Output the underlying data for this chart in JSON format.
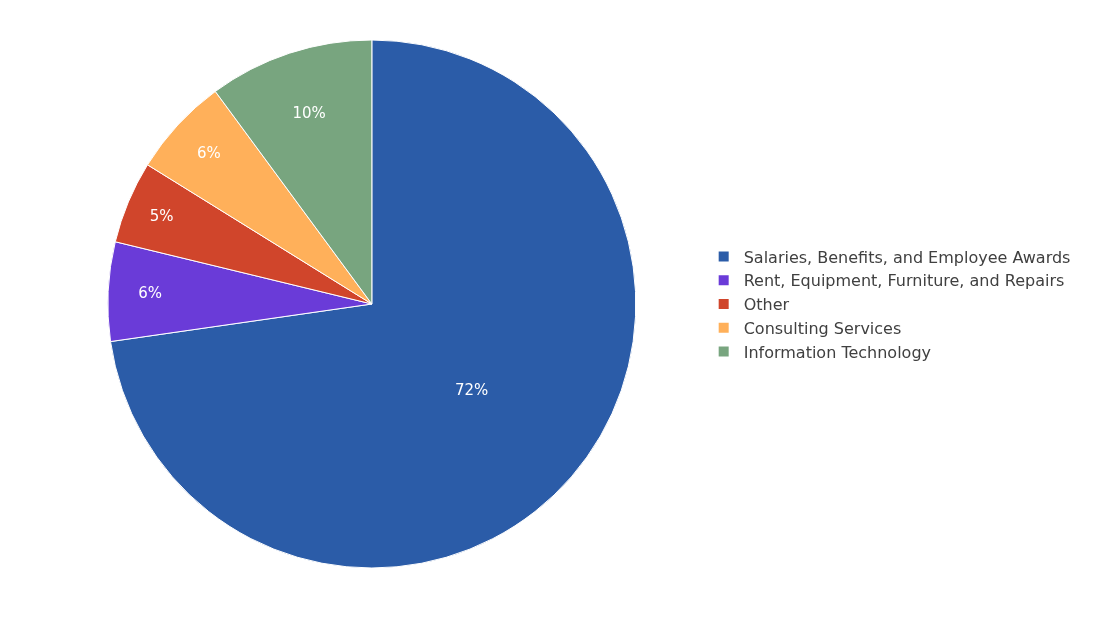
{
  "chart_data": {
    "type": "pie",
    "categories": [
      "Salaries, Benefits, and Employee Awards",
      "Rent, Equipment, Furniture, and Repairs",
      "Other",
      "Consulting Services",
      "Information Technology"
    ],
    "values": [
      72,
      6,
      5,
      6,
      10
    ],
    "colors": [
      "#2b5ca8",
      "#6a3bd8",
      "#d0452b",
      "#ffb05a",
      "#78a57f"
    ],
    "value_labels": [
      "72%",
      "6%",
      "5%",
      "6%",
      "10%"
    ],
    "legend": "right"
  }
}
